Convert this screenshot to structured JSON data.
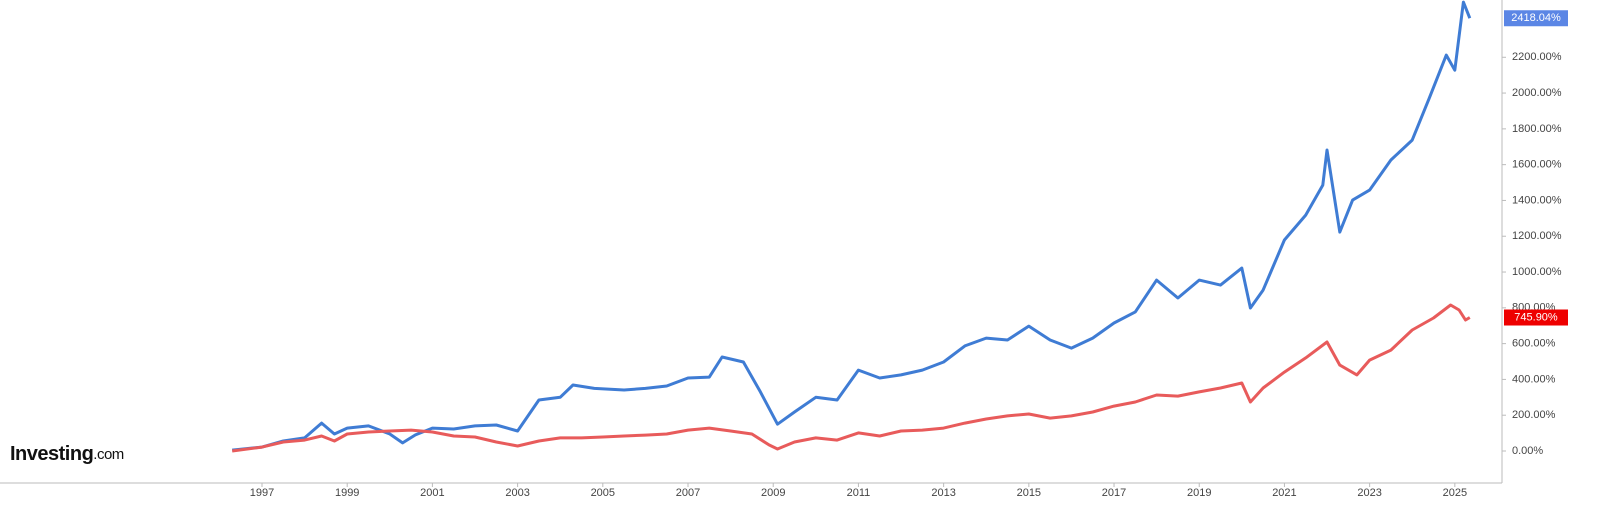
{
  "brand": "Investing",
  "brand_suffix": ".com",
  "chart_data": {
    "type": "line",
    "xlim": [
      1990.85,
      2026.06
    ],
    "xticks": [
      1997,
      1999,
      2001,
      2003,
      2005,
      2007,
      2009,
      2011,
      2013,
      2015,
      2017,
      2019,
      2021,
      2023,
      2025
    ],
    "ylim": [
      -190,
      2520
    ],
    "yticks": [
      {
        "value": 0,
        "label": "0.00%"
      },
      {
        "value": 200,
        "label": "200.00%"
      },
      {
        "value": 400,
        "label": "400.00%"
      },
      {
        "value": 600,
        "label": "600.00%"
      },
      {
        "value": 800,
        "label": "800.00%"
      },
      {
        "value": 1000,
        "label": "1000.00%"
      },
      {
        "value": 1200,
        "label": "1200.00%"
      },
      {
        "value": 1400,
        "label": "1400.00%"
      },
      {
        "value": 1600,
        "label": "1600.00%"
      },
      {
        "value": 1800,
        "label": "1800.00%"
      },
      {
        "value": 2000,
        "label": "2000.00%"
      },
      {
        "value": 2200,
        "label": "2200.00%"
      }
    ],
    "series": [
      {
        "color": "#3f7cd4",
        "label_color": "#5b86e5",
        "end_label": "2418.04%",
        "x": [
          1996.3,
          1997.0,
          1997.5,
          1998.0,
          1998.4,
          1998.7,
          1999.0,
          1999.5,
          2000.0,
          2000.3,
          2000.6,
          2001.0,
          2001.5,
          2002.0,
          2002.5,
          2003.0,
          2003.5,
          2004.0,
          2004.3,
          2004.8,
          2005.5,
          2006.0,
          2006.5,
          2007.0,
          2007.5,
          2007.8,
          2008.3,
          2008.7,
          2009.1,
          2009.5,
          2010.0,
          2010.5,
          2011.0,
          2011.5,
          2012.0,
          2012.5,
          2013.0,
          2013.5,
          2014.0,
          2014.5,
          2015.0,
          2015.5,
          2016.0,
          2016.5,
          2017.0,
          2017.5,
          2018.0,
          2018.5,
          2019.0,
          2019.5,
          2020.0,
          2020.2,
          2020.5,
          2021.0,
          2021.5,
          2021.9,
          2022.0,
          2022.3,
          2022.6,
          2023.0,
          2023.5,
          2024.0,
          2024.4,
          2024.8,
          2025.0,
          2025.2,
          2025.35
        ],
        "values": [
          5,
          22,
          56,
          73,
          156,
          95,
          128,
          140,
          95,
          45,
          90,
          128,
          123,
          140,
          145,
          112,
          285,
          300,
          369,
          350,
          341,
          350,
          363,
          408,
          413,
          525,
          497,
          330,
          150,
          218,
          300,
          285,
          452,
          408,
          425,
          452,
          497,
          587,
          631,
          620,
          698,
          620,
          575,
          631,
          715,
          777,
          955,
          855,
          955,
          927,
          1022,
          799,
          899,
          1179,
          1318,
          1486,
          1682,
          1223,
          1402,
          1458,
          1626,
          1737,
          1972,
          2212,
          2128,
          2508,
          2418.04
        ]
      },
      {
        "color": "#e85b5b",
        "label_color": "#ee0000",
        "end_label": "745.90%",
        "x": [
          1996.3,
          1997.0,
          1997.5,
          1998.0,
          1998.4,
          1998.7,
          1999.0,
          1999.5,
          2000.0,
          2000.5,
          2001.0,
          2001.5,
          2002.0,
          2002.5,
          2003.0,
          2003.5,
          2004.0,
          2004.5,
          2005.0,
          2005.5,
          2006.0,
          2006.5,
          2007.0,
          2007.5,
          2008.0,
          2008.5,
          2008.9,
          2009.1,
          2009.5,
          2010.0,
          2010.5,
          2011.0,
          2011.5,
          2012.0,
          2012.5,
          2013.0,
          2013.5,
          2014.0,
          2014.5,
          2015.0,
          2015.5,
          2016.0,
          2016.5,
          2017.0,
          2017.5,
          2018.0,
          2018.5,
          2019.0,
          2019.5,
          2020.0,
          2020.2,
          2020.5,
          2021.0,
          2021.5,
          2022.0,
          2022.3,
          2022.7,
          2023.0,
          2023.5,
          2024.0,
          2024.5,
          2024.9,
          2025.1,
          2025.25,
          2025.35
        ],
        "values": [
          0,
          22,
          50,
          61,
          84,
          56,
          95,
          106,
          112,
          117,
          106,
          84,
          78,
          50,
          28,
          56,
          73,
          73,
          78,
          84,
          89,
          95,
          117,
          128,
          112,
          95,
          34,
          11,
          50,
          73,
          61,
          101,
          84,
          112,
          117,
          128,
          156,
          179,
          196,
          207,
          184,
          196,
          218,
          251,
          274,
          313,
          307,
          330,
          352,
          380,
          274,
          352,
          441,
          520,
          609,
          480,
          425,
          508,
          564,
          676,
          743,
          816,
          788,
          732,
          745.9
        ]
      }
    ]
  }
}
